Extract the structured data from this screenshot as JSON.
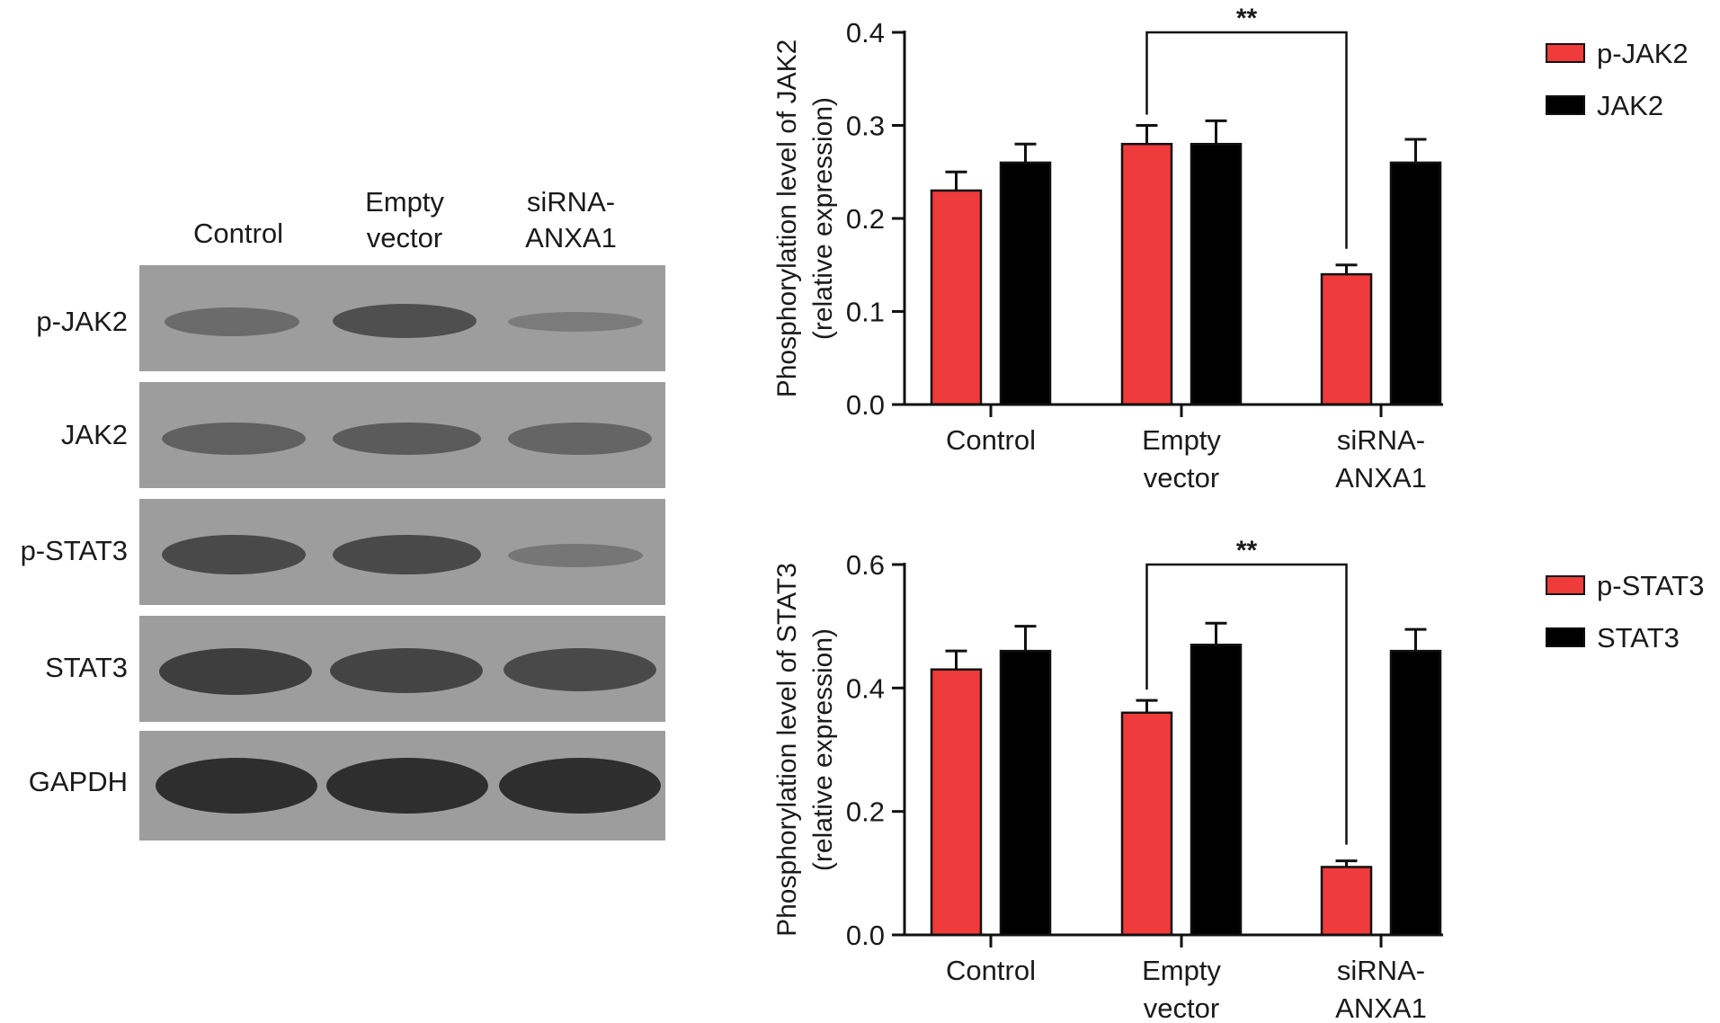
{
  "blot": {
    "lanes": [
      {
        "line1": "",
        "line2": "Control"
      },
      {
        "line1": "Empty",
        "line2": "vector"
      },
      {
        "line1": "siRNA-",
        "line2": "ANXA1"
      }
    ],
    "rows": [
      {
        "label": "p-JAK2",
        "intensity": [
          0.45,
          0.7,
          0.25
        ]
      },
      {
        "label": "JAK2",
        "intensity": [
          0.55,
          0.6,
          0.5
        ]
      },
      {
        "label": "p-STAT3",
        "intensity": [
          0.75,
          0.75,
          0.3
        ]
      },
      {
        "label": "STAT3",
        "intensity": [
          0.85,
          0.8,
          0.75
        ]
      },
      {
        "label": "GAPDH",
        "intensity": [
          1.0,
          1.0,
          1.0
        ]
      }
    ]
  },
  "colors": {
    "phospho": "#ef3b3b",
    "total": "#000000",
    "axis": "#111111"
  },
  "chart_data": [
    {
      "type": "bar",
      "ylabel_line1": "Phosphorylation level of JAK2",
      "ylabel_line2": "(relative expression)",
      "ylim": [
        0,
        0.4
      ],
      "yticks": [
        "0.0",
        "0.1",
        "0.2",
        "0.3",
        "0.4"
      ],
      "ytick_values": [
        0,
        0.1,
        0.2,
        0.3,
        0.4
      ],
      "categories": [
        [
          "Control"
        ],
        [
          "Empty",
          "vector"
        ],
        [
          "siRNA-",
          "ANXA1"
        ]
      ],
      "series": [
        {
          "name": "p-JAK2",
          "values": [
            0.23,
            0.28,
            0.14
          ],
          "errors": [
            0.02,
            0.02,
            0.01
          ]
        },
        {
          "name": "JAK2",
          "values": [
            0.26,
            0.28,
            0.26
          ],
          "errors": [
            0.02,
            0.025,
            0.025
          ]
        }
      ],
      "significance": {
        "label": "**",
        "from_category": 1,
        "to_category": 2
      },
      "legend": "right"
    },
    {
      "type": "bar",
      "ylabel_line1": "Phosphorylation level of STAT3",
      "ylabel_line2": "(relative expression)",
      "ylim": [
        0,
        0.6
      ],
      "yticks": [
        "0.0",
        "0.2",
        "0.4",
        "0.6"
      ],
      "ytick_values": [
        0,
        0.2,
        0.4,
        0.6
      ],
      "categories": [
        [
          "Control"
        ],
        [
          "Empty",
          "vector"
        ],
        [
          "siRNA-",
          "ANXA1"
        ]
      ],
      "series": [
        {
          "name": "p-STAT3",
          "values": [
            0.43,
            0.36,
            0.11
          ],
          "errors": [
            0.03,
            0.02,
            0.01
          ]
        },
        {
          "name": "STAT3",
          "values": [
            0.46,
            0.47,
            0.46
          ],
          "errors": [
            0.04,
            0.035,
            0.035
          ]
        }
      ],
      "significance": {
        "label": "**",
        "from_category": 1,
        "to_category": 2
      },
      "legend": "right"
    }
  ]
}
